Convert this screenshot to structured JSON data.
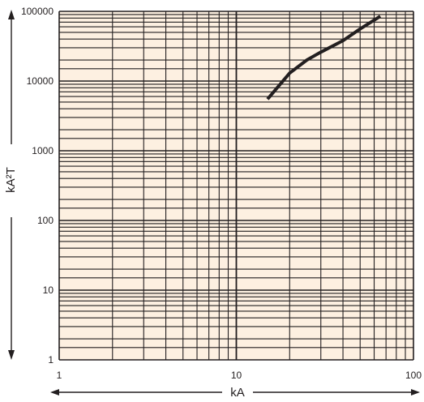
{
  "chart_data": {
    "type": "line",
    "title": "",
    "xlabel": "kA",
    "ylabel": "kA²T",
    "x_scale": "log",
    "y_scale": "log",
    "xlim": [
      1,
      100
    ],
    "ylim": [
      1,
      100000
    ],
    "x_ticks": [
      "1",
      "10",
      "100"
    ],
    "y_ticks": [
      "1",
      "10",
      "100",
      "1000",
      "10000",
      "100000"
    ],
    "grid": true,
    "legend": "none",
    "colors": {
      "plot_background": "#fdf0e1",
      "grid": "#231f20",
      "line": "#231f20"
    },
    "series": [
      {
        "x": [
          15,
          17,
          20,
          25,
          30,
          40,
          50,
          65
        ],
        "y": [
          5500,
          8000,
          13000,
          20000,
          26000,
          38000,
          56000,
          85000
        ]
      }
    ]
  }
}
